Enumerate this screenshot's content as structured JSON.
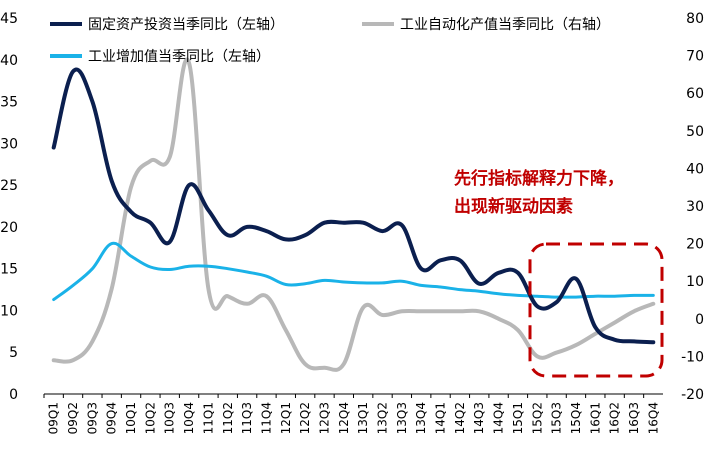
{
  "chart_data": {
    "type": "line",
    "categories": [
      "09Q1",
      "09Q2",
      "09Q3",
      "09Q4",
      "10Q1",
      "10Q2",
      "10Q3",
      "10Q4",
      "11Q1",
      "11Q2",
      "11Q3",
      "11Q4",
      "12Q1",
      "12Q2",
      "12Q3",
      "12Q4",
      "13Q1",
      "13Q2",
      "13Q3",
      "13Q4",
      "14Q1",
      "14Q2",
      "14Q3",
      "14Q4",
      "15Q1",
      "15Q2",
      "15Q3",
      "15Q4",
      "16Q1",
      "16Q2",
      "16Q3",
      "16Q4"
    ],
    "y_left": {
      "min": 0,
      "max": 45,
      "ticks": [
        0,
        5,
        10,
        15,
        20,
        25,
        30,
        35,
        40,
        45
      ]
    },
    "y_right": {
      "min": -20,
      "max": 80,
      "ticks": [
        -20,
        -10,
        0,
        10,
        20,
        30,
        40,
        50,
        60,
        70,
        80
      ]
    },
    "series": [
      {
        "name": "固定资产投资当季同比（左轴）",
        "axis": "left",
        "color": "#0b1f4f",
        "values": [
          29.5,
          38.6,
          35.0,
          25.5,
          21.8,
          20.5,
          18.2,
          25.0,
          22.0,
          19.0,
          20.0,
          19.5,
          18.5,
          19.0,
          20.5,
          20.5,
          20.5,
          19.5,
          20.2,
          15.0,
          16.0,
          16.0,
          13.2,
          14.5,
          14.5,
          10.5,
          11.0,
          13.8,
          8.0,
          6.5,
          6.3,
          6.2
        ]
      },
      {
        "name": "工业自动化产值当季同比（右轴）",
        "axis": "right",
        "color": "#b8b8b8",
        "values": [
          -11,
          -11,
          -6,
          8,
          35,
          42,
          43,
          68,
          8,
          6,
          4,
          6,
          -3,
          -12,
          -13,
          -12,
          3,
          1,
          2,
          2,
          2,
          2,
          2,
          0,
          -3,
          -10,
          -9,
          -7,
          -4,
          -1,
          2,
          4
        ]
      },
      {
        "name": "工业增加值当季同比（左轴）",
        "axis": "left",
        "color": "#1ab2e8",
        "values": [
          11.3,
          13.0,
          15.0,
          18.0,
          16.5,
          15.2,
          14.9,
          15.3,
          15.3,
          15.0,
          14.6,
          14.1,
          13.1,
          13.2,
          13.6,
          13.4,
          13.3,
          13.3,
          13.5,
          13.0,
          12.8,
          12.5,
          12.3,
          12.0,
          11.8,
          11.7,
          11.6,
          11.6,
          11.7,
          11.7,
          11.8,
          11.8
        ]
      }
    ],
    "annotation": [
      "先行指标解释力下降，",
      "出现新驱动因素"
    ]
  }
}
